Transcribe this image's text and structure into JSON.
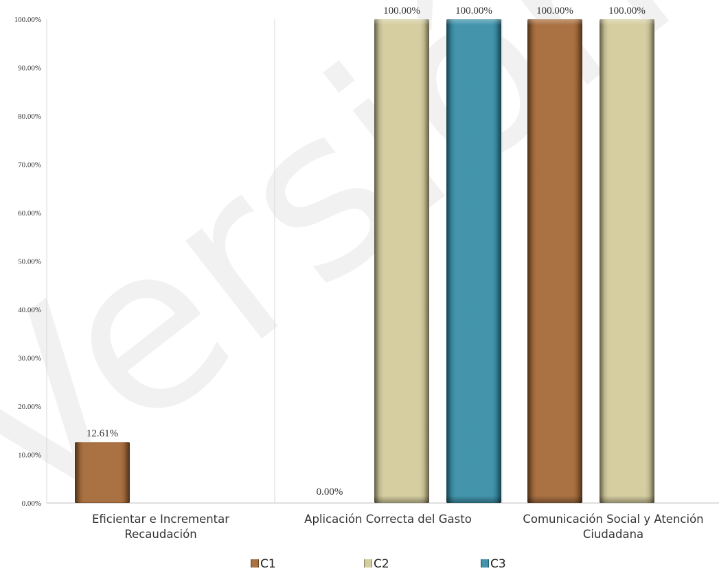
{
  "watermark": "Versión Pública",
  "chart_data": {
    "type": "bar",
    "title": "",
    "xlabel": "",
    "ylabel": "",
    "ylim": [
      0,
      100
    ],
    "y_ticks": [
      "0.00%",
      "10.00%",
      "20.00%",
      "30.00%",
      "40.00%",
      "50.00%",
      "60.00%",
      "70.00%",
      "80.00%",
      "90.00%",
      "100.00%"
    ],
    "categories": [
      [
        "Eficientar e Incrementar",
        "Recaudación"
      ],
      [
        "Aplicación Correcta del Gasto"
      ],
      [
        "Comunicación Social y Atención",
        "Ciudadana"
      ]
    ],
    "legend_position": "bottom",
    "grid": false,
    "series": [
      {
        "name": "C1",
        "color": "#a56a38"
      },
      {
        "name": "C2",
        "color": "#d4cb9c"
      },
      {
        "name": "C3",
        "color": "#398fa8"
      }
    ],
    "bars": [
      {
        "category": 0,
        "series": 0,
        "value": 12.61,
        "label": "12.61%"
      },
      {
        "category": 1,
        "series": 0,
        "value": 0.0,
        "label": "0.00%"
      },
      {
        "category": 1,
        "series": 1,
        "value": 100.0,
        "label": "100.00%"
      },
      {
        "category": 1,
        "series": 2,
        "value": 100.0,
        "label": "100.00%"
      },
      {
        "category": 2,
        "series": 0,
        "value": 100.0,
        "label": "100.00%"
      },
      {
        "category": 2,
        "series": 1,
        "value": 100.0,
        "label": "100.00%"
      }
    ]
  }
}
